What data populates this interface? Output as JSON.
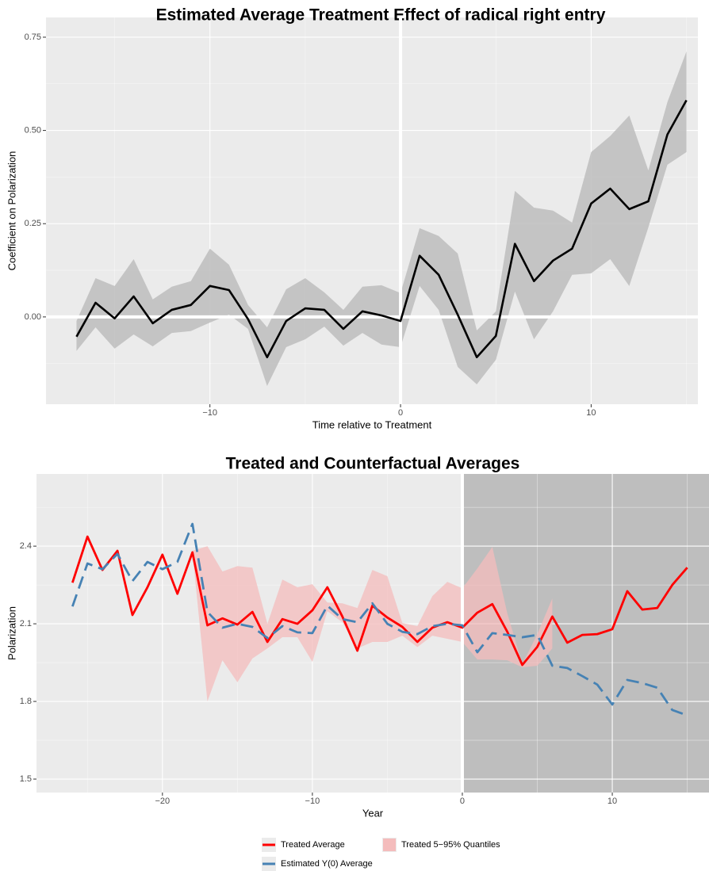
{
  "chart_data": [
    {
      "type": "ribbon-line",
      "title": "Estimated Average Treatment Effect of radical right entry",
      "x_label": "Time relative to Treatment",
      "y_label": "Coefficient on Polarization",
      "xlim": [
        -18.6,
        15.6
      ],
      "ylim": [
        -0.234,
        0.803
      ],
      "xticks": [
        {
          "value": -10,
          "label": "−10"
        },
        0,
        10
      ],
      "yticks": [
        {
          "value": 0,
          "label": "0.00"
        },
        0.25,
        {
          "value": 0.5,
          "label": "0.50"
        },
        0.75
      ],
      "x_minor_ticks": [
        -15,
        -5,
        5,
        15
      ],
      "y_minor_ticks": [
        -0.125,
        0.125,
        0.375,
        0.625
      ],
      "grid": true,
      "vline": 0,
      "hline": 0,
      "series": [
        {
          "color": "#000000",
          "band_color": "#bdbdbd",
          "x": [
            -17,
            -16,
            -15,
            -14,
            -13,
            -12,
            -11,
            -10,
            -9,
            -8,
            -7,
            -6,
            -5,
            -4,
            -3,
            -2,
            -1,
            0,
            1,
            2,
            3,
            4,
            5,
            6,
            7,
            8,
            9,
            10,
            11,
            12,
            13,
            14,
            15
          ],
          "values": [
            -0.053,
            0.038,
            -0.004,
            0.055,
            -0.017,
            0.019,
            0.032,
            0.083,
            0.072,
            -0.006,
            -0.108,
            -0.011,
            0.023,
            0.019,
            -0.032,
            0.015,
            0.004,
            -0.011,
            0.164,
            0.113,
            0.006,
            -0.108,
            -0.051,
            0.196,
            0.096,
            0.151,
            0.183,
            0.304,
            0.344,
            0.289,
            0.31,
            0.489,
            0.581
          ],
          "upper": [
            -0.011,
            0.104,
            0.083,
            0.155,
            0.047,
            0.081,
            0.096,
            0.183,
            0.14,
            0.032,
            -0.028,
            0.074,
            0.104,
            0.066,
            0.019,
            0.081,
            0.085,
            0.064,
            0.238,
            0.217,
            0.17,
            -0.036,
            0.015,
            0.338,
            0.293,
            0.285,
            0.253,
            0.442,
            0.485,
            0.54,
            0.393,
            0.576,
            0.712
          ],
          "lower": [
            -0.091,
            -0.028,
            -0.085,
            -0.047,
            -0.079,
            -0.043,
            -0.038,
            -0.015,
            0.006,
            -0.032,
            -0.185,
            -0.081,
            -0.06,
            -0.026,
            -0.077,
            -0.043,
            -0.074,
            -0.081,
            0.083,
            0.019,
            -0.134,
            -0.181,
            -0.115,
            0.068,
            -0.06,
            0.015,
            0.113,
            0.117,
            0.155,
            0.083,
            0.24,
            0.408,
            0.442
          ]
        }
      ]
    },
    {
      "type": "counterfactual",
      "title": "Treated and Counterfactual Averages",
      "x_label": "Year",
      "y_label": "Polarization",
      "xlim": [
        -28.4,
        16.45
      ],
      "ylim": [
        1.448,
        2.679
      ],
      "xticks": [
        {
          "value": -20,
          "label": "−20"
        },
        {
          "value": -10,
          "label": "−10"
        },
        0,
        10
      ],
      "yticks": [
        1.5,
        1.8,
        2.1,
        2.4
      ],
      "x_minor_ticks": [
        -25,
        -15,
        -5,
        5,
        15
      ],
      "y_minor_ticks": [
        1.65,
        1.95,
        2.25,
        2.55
      ],
      "grid": true,
      "vline": 0,
      "shaded_x_start": 0,
      "legend": "bottom",
      "series": [
        {
          "name": "Treated Average",
          "color": "#ff0000",
          "linestyle": "solid",
          "x": [
            -26,
            -25,
            -24,
            -23,
            -22,
            -21,
            -20,
            -19,
            -18,
            -17,
            -16,
            -15,
            -14,
            -13,
            -12,
            -11,
            -10,
            -9,
            -8,
            -7,
            -6,
            -5,
            -4,
            -3,
            -2,
            -1,
            0,
            1,
            2,
            3,
            4,
            5,
            6,
            7,
            8,
            9,
            10,
            11,
            12,
            13,
            14,
            15
          ],
          "values": [
            2.259,
            2.437,
            2.308,
            2.382,
            2.134,
            2.241,
            2.367,
            2.216,
            2.376,
            2.094,
            2.121,
            2.097,
            2.146,
            2.03,
            2.118,
            2.1,
            2.152,
            2.241,
            2.128,
            1.996,
            2.17,
            2.124,
            2.088,
            2.03,
            2.085,
            2.106,
            2.085,
            2.143,
            2.176,
            2.069,
            1.941,
            2.011,
            2.128,
            2.027,
            2.057,
            2.06,
            2.079,
            2.226,
            2.155,
            2.161,
            2.25,
            2.317
          ]
        },
        {
          "name": "Treated 5−95% Quantiles",
          "color": "#f4bcbc",
          "kind": "band",
          "x": [
            -18,
            -17,
            -16,
            -15,
            -14,
            -13,
            -12,
            -11,
            -10,
            -9,
            -8,
            -7,
            -6,
            -5,
            -4,
            -3,
            -2,
            -1,
            0,
            1,
            2,
            3,
            4,
            5,
            6
          ],
          "upper": [
            2.382,
            2.4,
            2.302,
            2.323,
            2.317,
            2.1,
            2.271,
            2.241,
            2.253,
            2.182,
            2.179,
            2.161,
            2.308,
            2.284,
            2.103,
            2.091,
            2.207,
            2.262,
            2.237,
            2.314,
            2.397,
            2.14,
            1.944,
            2.06,
            2.198
          ],
          "lower": [
            2.376,
            1.8,
            1.959,
            1.874,
            1.966,
            2.005,
            2.048,
            2.048,
            1.953,
            2.149,
            2.106,
            2.005,
            2.03,
            2.03,
            2.054,
            2.01,
            2.054,
            2.042,
            2.03,
            1.962,
            1.962,
            1.959,
            1.932,
            1.938,
            2.005
          ]
        },
        {
          "name": "Estimated Y(0) Average",
          "color": "#4682b4",
          "linestyle": "dashed",
          "x": [
            -26,
            -25,
            -24,
            -23,
            -22,
            -21,
            -20,
            -19,
            -18,
            -17,
            -16,
            -15,
            -14,
            -13,
            -12,
            -11,
            -10,
            -9,
            -8,
            -7,
            -6,
            -5,
            -4,
            -3,
            -2,
            -1,
            0,
            1,
            2,
            3,
            4,
            5,
            6,
            7,
            8,
            9,
            10,
            11,
            12,
            13,
            14,
            15
          ],
          "values": [
            2.167,
            2.333,
            2.311,
            2.37,
            2.265,
            2.339,
            2.311,
            2.339,
            2.486,
            2.146,
            2.085,
            2.1,
            2.088,
            2.045,
            2.091,
            2.067,
            2.064,
            2.17,
            2.118,
            2.106,
            2.179,
            2.1,
            2.069,
            2.06,
            2.091,
            2.1,
            2.094,
            1.99,
            2.064,
            2.057,
            2.048,
            2.057,
            1.938,
            1.929,
            1.898,
            1.865,
            1.788,
            1.883,
            1.871,
            1.853,
            1.767,
            1.746
          ]
        }
      ]
    }
  ]
}
